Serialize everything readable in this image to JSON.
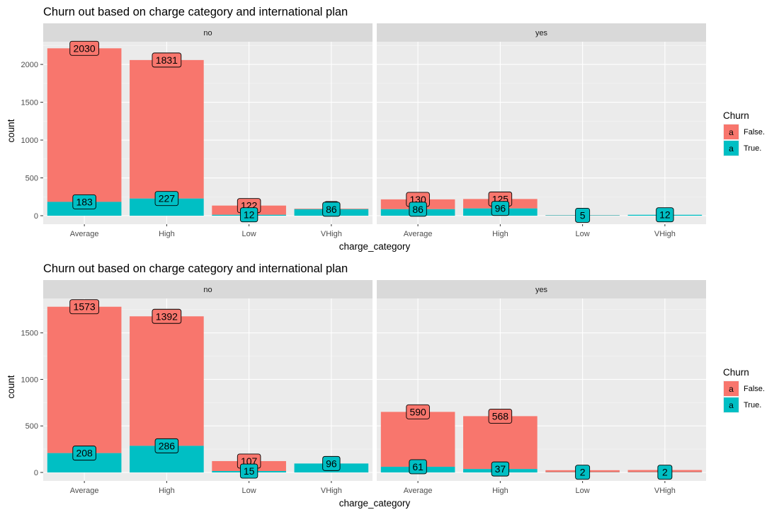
{
  "chart_data": [
    {
      "type": "bar",
      "stacked": true,
      "title": "Churn out based on charge category and international plan",
      "xlabel": "charge_category",
      "ylabel": "count",
      "ylim": [
        0,
        2300
      ],
      "yticks": [
        0,
        500,
        1000,
        1500,
        2000
      ],
      "grid": true,
      "legend": {
        "title": "Churn",
        "position": "right",
        "key_glyph": "a",
        "entries": [
          {
            "label": "False.",
            "color": "#F8766D"
          },
          {
            "label": "True.",
            "color": "#00BFC4"
          }
        ]
      },
      "facet_variable": "international plan",
      "categories": [
        "Average",
        "High",
        "Low",
        "VHigh"
      ],
      "panels": [
        {
          "label": "no",
          "series": [
            {
              "name": "False.",
              "values": [
                2030,
                1831,
                122,
                8
              ],
              "labels": [
                "2030",
                "1831",
                "122",
                "8"
              ]
            },
            {
              "name": "True.",
              "values": [
                183,
                227,
                12,
                86
              ],
              "labels": [
                "183",
                "227",
                "12",
                "86"
              ]
            }
          ]
        },
        {
          "label": "yes",
          "series": [
            {
              "name": "False.",
              "values": [
                130,
                125,
                2,
                0
              ],
              "labels": [
                "130",
                "125",
                "",
                ""
              ]
            },
            {
              "name": "True.",
              "values": [
                86,
                96,
                5,
                12
              ],
              "labels": [
                "86",
                "96",
                "5",
                "12"
              ]
            }
          ]
        }
      ]
    },
    {
      "type": "bar",
      "stacked": true,
      "title": "Churn out based on charge category and international plan",
      "xlabel": "charge_category",
      "ylabel": "count",
      "ylim": [
        0,
        1870
      ],
      "yticks": [
        0,
        500,
        1000,
        1500
      ],
      "grid": true,
      "legend": {
        "title": "Churn",
        "position": "right",
        "key_glyph": "a",
        "entries": [
          {
            "label": "False.",
            "color": "#F8766D"
          },
          {
            "label": "True.",
            "color": "#00BFC4"
          }
        ]
      },
      "facet_variable": "international plan",
      "categories": [
        "Average",
        "High",
        "Low",
        "VHigh"
      ],
      "panels": [
        {
          "label": "no",
          "series": [
            {
              "name": "False.",
              "values": [
                1573,
                1392,
                107,
                0
              ],
              "labels": [
                "1573",
                "1392",
                "107",
                ""
              ]
            },
            {
              "name": "True.",
              "values": [
                208,
                286,
                15,
                96
              ],
              "labels": [
                "208",
                "286",
                "15",
                "96"
              ]
            }
          ]
        },
        {
          "label": "yes",
          "series": [
            {
              "name": "False.",
              "values": [
                590,
                568,
                22,
                24
              ],
              "labels": [
                "590",
                "568",
                "",
                ""
              ]
            },
            {
              "name": "True.",
              "values": [
                61,
                37,
                2,
                2
              ],
              "labels": [
                "61",
                "37",
                "2",
                "2"
              ]
            }
          ]
        }
      ]
    }
  ]
}
